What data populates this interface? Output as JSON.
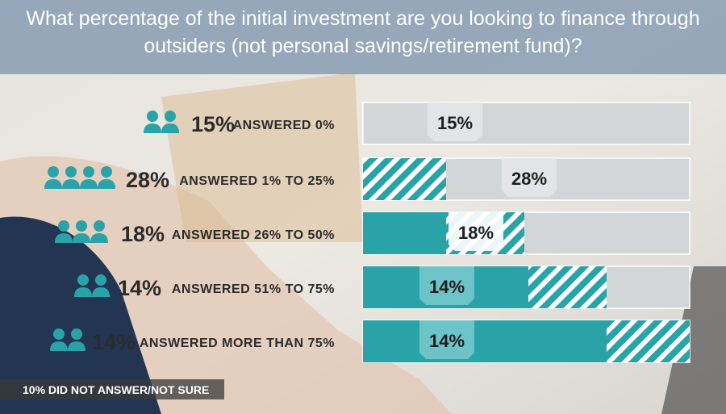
{
  "title": "What percentage of the initial investment are you looking to finance through outsiders (not personal savings/retirement fund)?",
  "rows": [
    {
      "percent": "15%",
      "label": "ANSWERED 0%",
      "bar_label": "15%"
    },
    {
      "percent": "28%",
      "label": "ANSWERED  1% TO 25%",
      "bar_label": "28%"
    },
    {
      "percent": "18%",
      "label": "ANSWERED 26% TO 50%",
      "bar_label": "18%"
    },
    {
      "percent": "14%",
      "label": "ANSWERED  51% TO 75%",
      "bar_label": "14%"
    },
    {
      "percent": "14%",
      "label": "ANSWERED  MORE THAN 75%",
      "bar_label": "14%"
    }
  ],
  "footer": "10%  DID NOT ANSWER/NOT SURE"
}
